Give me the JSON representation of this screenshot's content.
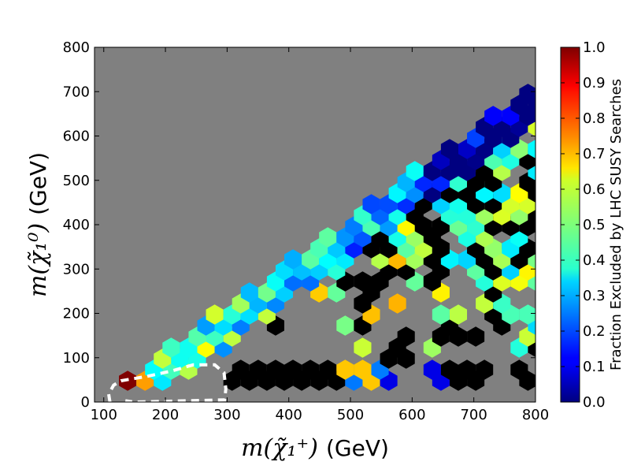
{
  "chart_data": {
    "type": "heatmap",
    "subtype": "hexbin",
    "title": "",
    "xlabel": "m(χ̃₁⁺)",
    "xlabel_unit": "(GeV)",
    "ylabel": "m(χ̃₁⁰)",
    "ylabel_unit": "(GeV)",
    "xlim": [
      85,
      800
    ],
    "ylim": [
      0,
      800
    ],
    "xticks": [
      "100",
      "200",
      "300",
      "400",
      "500",
      "600",
      "700",
      "800"
    ],
    "yticks": [
      "0",
      "100",
      "200",
      "300",
      "400",
      "500",
      "600",
      "700",
      "800"
    ],
    "colorbar": {
      "label": "Fraction Excluded by LHC SUSY Searches",
      "range": [
        0.0,
        1.0
      ],
      "colormap": "jet",
      "ticks": [
        "0.0",
        "0.1",
        "0.2",
        "0.3",
        "0.4",
        "0.5",
        "0.6",
        "0.7",
        "0.8",
        "0.9",
        "1.0"
      ]
    },
    "background_color": "#808080",
    "excluded_color": "#000000",
    "grid": false,
    "contour": {
      "style": "white dashed",
      "points": [
        [
          110,
          0
        ],
        [
          108,
          18
        ],
        [
          116,
          38
        ],
        [
          128,
          48
        ],
        [
          170,
          58
        ],
        [
          210,
          70
        ],
        [
          245,
          84
        ],
        [
          280,
          84
        ],
        [
          295,
          66
        ],
        [
          298,
          30
        ],
        [
          296,
          5
        ],
        [
          150,
          0
        ],
        [
          135,
          3
        ]
      ]
    }
  }
}
